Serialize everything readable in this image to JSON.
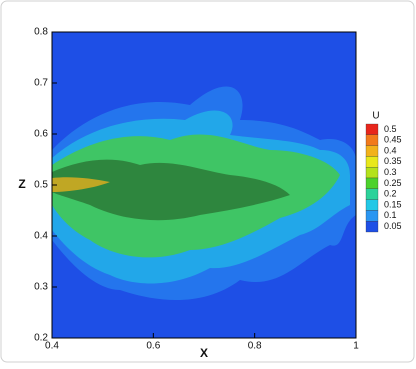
{
  "chart_data": {
    "type": "contour",
    "xlabel": "X",
    "ylabel": "Z",
    "xlim": [
      0.4,
      1
    ],
    "ylim": [
      0.2,
      0.8
    ],
    "xticks": [
      0.4,
      0.6,
      0.8,
      1
    ],
    "yticks": [
      0.2,
      0.3,
      0.4,
      0.5,
      0.6,
      0.7,
      0.8
    ],
    "background_color": "#1e4fe6",
    "colorbar": {
      "title": "U",
      "levels": [
        0.5,
        0.45,
        0.4,
        0.35,
        0.3,
        0.25,
        0.2,
        0.15,
        0.1,
        0.05
      ],
      "colors": [
        "#e8261c",
        "#f27a1c",
        "#f2b21c",
        "#e8e81c",
        "#b4e21c",
        "#4cd22c",
        "#2cd29a",
        "#22c8e6",
        "#2a96f2",
        "#1e4fe6"
      ]
    }
  }
}
